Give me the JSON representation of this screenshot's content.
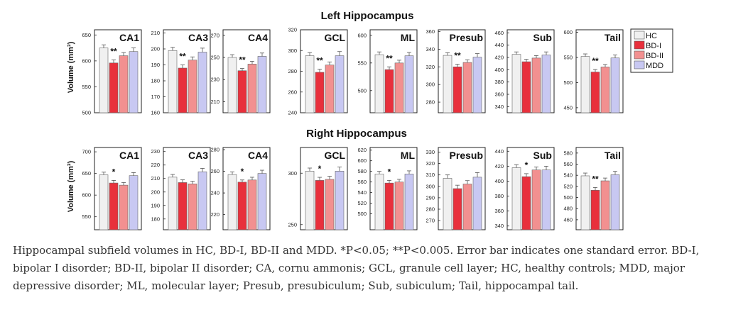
{
  "figure": {
    "sections": [
      "Left Hippocampus",
      "Right Hippocampus"
    ],
    "ylabel": "Volume (mm³)"
  },
  "legend": {
    "items": [
      {
        "label": "HC",
        "color": "#f0f0f0"
      },
      {
        "label": "BD-I",
        "color": "#e8303c"
      },
      {
        "label": "BD-II",
        "color": "#f29090"
      },
      {
        "label": "MDD",
        "color": "#c8c8f2"
      }
    ]
  },
  "chart_data": [
    {
      "type": "bar",
      "hemisphere": "left",
      "title": "CA1",
      "categories": [
        "HC",
        "BD-I",
        "BD-II",
        "MDD"
      ],
      "values": [
        625,
        596,
        610,
        618
      ],
      "errors": [
        6,
        6,
        6,
        7
      ],
      "ylim": [
        500,
        660
      ],
      "yticks": [
        500,
        550,
        600,
        650
      ],
      "significance": "**"
    },
    {
      "type": "bar",
      "hemisphere": "left",
      "title": "CA3",
      "categories": [
        "HC",
        "BD-I",
        "BD-II",
        "MDD"
      ],
      "values": [
        199,
        188,
        193,
        198
      ],
      "errors": [
        2,
        2,
        2,
        2.5
      ],
      "ylim": [
        160,
        212
      ],
      "yticks": [
        160,
        170,
        180,
        190,
        200,
        210
      ],
      "significance": "**"
    },
    {
      "type": "bar",
      "hemisphere": "left",
      "title": "CA4",
      "categories": [
        "HC",
        "BD-I",
        "BD-II",
        "MDD"
      ],
      "values": [
        250,
        238,
        244,
        251
      ],
      "errors": [
        2.5,
        2,
        2.5,
        3
      ],
      "ylim": [
        200,
        275
      ],
      "yticks": [
        210,
        230,
        250,
        270
      ],
      "significance": "**"
    },
    {
      "type": "bar",
      "hemisphere": "left",
      "title": "GCL",
      "categories": [
        "HC",
        "BD-I",
        "BD-II",
        "MDD"
      ],
      "values": [
        295,
        279,
        286,
        295
      ],
      "errors": [
        3,
        3,
        3,
        4
      ],
      "ylim": [
        240,
        320
      ],
      "yticks": [
        240,
        260,
        280,
        300,
        320
      ],
      "significance": "**"
    },
    {
      "type": "bar",
      "hemisphere": "left",
      "title": "ML",
      "categories": [
        "HC",
        "BD-I",
        "BD-II",
        "MDD"
      ],
      "values": [
        565,
        538,
        550,
        563
      ],
      "errors": [
        5,
        5,
        5,
        6
      ],
      "ylim": [
        460,
        610
      ],
      "yticks": [
        500,
        550,
        600
      ],
      "significance": "**"
    },
    {
      "type": "bar",
      "hemisphere": "left",
      "title": "Presub",
      "categories": [
        "HC",
        "BD-I",
        "BD-II",
        "MDD"
      ],
      "values": [
        333,
        320,
        325,
        331
      ],
      "errors": [
        3,
        3,
        3,
        4
      ],
      "ylim": [
        268,
        362
      ],
      "yticks": [
        280,
        300,
        320,
        340,
        360
      ],
      "significance": "**"
    },
    {
      "type": "bar",
      "hemisphere": "left",
      "title": "Sub",
      "categories": [
        "HC",
        "BD-I",
        "BD-II",
        "MDD"
      ],
      "values": [
        425,
        413,
        419,
        424
      ],
      "errors": [
        4,
        4,
        4,
        5
      ],
      "ylim": [
        330,
        465
      ],
      "yticks": [
        340,
        360,
        380,
        400,
        420,
        440,
        460
      ],
      "significance": ""
    },
    {
      "type": "bar",
      "hemisphere": "left",
      "title": "Tail",
      "categories": [
        "HC",
        "BD-I",
        "BD-II",
        "MDD"
      ],
      "values": [
        552,
        521,
        531,
        549
      ],
      "errors": [
        5,
        5,
        5,
        6
      ],
      "ylim": [
        440,
        605
      ],
      "yticks": [
        450,
        500,
        550,
        600
      ],
      "significance": "**"
    },
    {
      "type": "bar",
      "hemisphere": "right",
      "title": "CA1",
      "categories": [
        "HC",
        "BD-I",
        "BD-II",
        "MDD"
      ],
      "values": [
        647,
        628,
        623,
        645
      ],
      "errors": [
        6,
        6,
        6,
        7
      ],
      "ylim": [
        520,
        710
      ],
      "yticks": [
        550,
        600,
        650,
        700
      ],
      "significance": "*"
    },
    {
      "type": "bar",
      "hemisphere": "right",
      "title": "CA3",
      "categories": [
        "HC",
        "BD-I",
        "BD-II",
        "MDD"
      ],
      "values": [
        211,
        207,
        206,
        215
      ],
      "errors": [
        2,
        2,
        2,
        2.5
      ],
      "ylim": [
        172,
        233
      ],
      "yticks": [
        180,
        190,
        200,
        210,
        220,
        230
      ],
      "significance": ""
    },
    {
      "type": "bar",
      "hemisphere": "right",
      "title": "CA4",
      "categories": [
        "HC",
        "BD-I",
        "BD-II",
        "MDD"
      ],
      "values": [
        257,
        250,
        252,
        258
      ],
      "errors": [
        2.5,
        2,
        2.5,
        3
      ],
      "ylim": [
        206,
        282
      ],
      "yticks": [
        220,
        240,
        260,
        280
      ],
      "significance": "*"
    },
    {
      "type": "bar",
      "hemisphere": "right",
      "title": "GCL",
      "categories": [
        "HC",
        "BD-I",
        "BD-II",
        "MDD"
      ],
      "values": [
        302,
        293,
        294,
        302
      ],
      "errors": [
        3,
        3,
        3,
        4
      ],
      "ylim": [
        245,
        325
      ],
      "yticks": [
        250,
        300
      ],
      "significance": "*"
    },
    {
      "type": "bar",
      "hemisphere": "right",
      "title": "ML",
      "categories": [
        "HC",
        "BD-I",
        "BD-II",
        "MDD"
      ],
      "values": [
        575,
        558,
        560,
        575
      ],
      "errors": [
        5,
        5,
        5,
        6
      ],
      "ylim": [
        470,
        625
      ],
      "yticks": [
        500,
        520,
        540,
        560,
        580,
        600,
        620
      ],
      "significance": "*"
    },
    {
      "type": "bar",
      "hemisphere": "right",
      "title": "Presub",
      "categories": [
        "HC",
        "BD-I",
        "BD-II",
        "MDD"
      ],
      "values": [
        307,
        298,
        302,
        308
      ],
      "errors": [
        3,
        3,
        3,
        4
      ],
      "ylim": [
        262,
        334
      ],
      "yticks": [
        270,
        280,
        290,
        300,
        310,
        320,
        330
      ],
      "significance": ""
    },
    {
      "type": "bar",
      "hemisphere": "right",
      "title": "Sub",
      "categories": [
        "HC",
        "BD-I",
        "BD-II",
        "MDD"
      ],
      "values": [
        418,
        406,
        415,
        415
      ],
      "errors": [
        4,
        4,
        4,
        5
      ],
      "ylim": [
        335,
        445
      ],
      "yticks": [
        340,
        360,
        380,
        400,
        420,
        440
      ],
      "significance": "*"
    },
    {
      "type": "bar",
      "hemisphere": "right",
      "title": "Tail",
      "categories": [
        "HC",
        "BD-I",
        "BD-II",
        "MDD"
      ],
      "values": [
        539,
        513,
        530,
        541
      ],
      "errors": [
        5,
        5,
        5,
        6
      ],
      "ylim": [
        442,
        590
      ],
      "yticks": [
        460,
        480,
        500,
        520,
        540,
        560,
        580
      ],
      "significance": "**"
    }
  ],
  "caption": "Hippocampal subfield volumes in HC, BD-I, BD-II and MDD. *P<0.05; **P<0.005. Error bar indicates one standard error. BD-I, bipolar I disorder; BD-II, bipolar II disorder; CA, cornu ammonis; GCL, granule cell layer; HC, healthy controls; MDD, major depressive disorder; ML, molecular layer; Presub, presubiculum; Sub, subiculum; Tail, hippocampal tail."
}
